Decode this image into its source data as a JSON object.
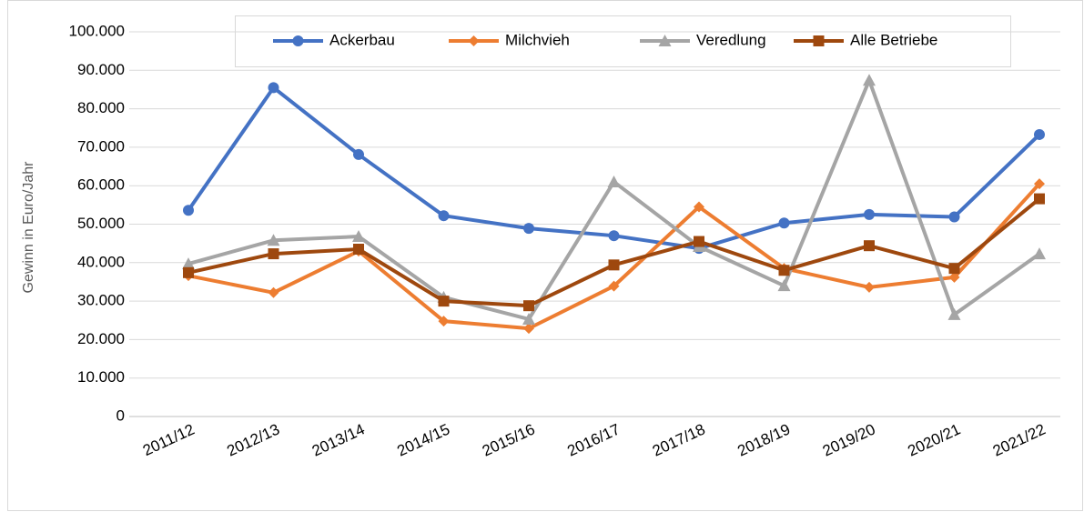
{
  "chart_data": {
    "type": "line",
    "y_label": "Gewinn in Euro/Jahr",
    "categories": [
      "2011/12",
      "2012/13",
      "2013/14",
      "2014/15",
      "2015/16",
      "2016/17",
      "2017/18",
      "2018/19",
      "2019/20",
      "2020/21",
      "2021/22"
    ],
    "series": [
      {
        "name": "Ackerbau",
        "color": "#4472c4",
        "marker": "circle",
        "values": [
          53600,
          85500,
          68100,
          52200,
          48900,
          47000,
          43700,
          50300,
          52500,
          51900,
          73300
        ]
      },
      {
        "name": "Milchvieh",
        "color": "#ed7d31",
        "marker": "diamond",
        "values": [
          36600,
          32200,
          43000,
          24800,
          22900,
          33900,
          54500,
          38500,
          33600,
          36200,
          60500
        ]
      },
      {
        "name": "Veredlung",
        "color": "#a5a5a5",
        "marker": "triangle",
        "values": [
          39700,
          45800,
          46800,
          31000,
          25300,
          61000,
          44200,
          34000,
          87400,
          26500,
          42300
        ]
      },
      {
        "name": "Alle Betriebe",
        "color": "#9e480e",
        "marker": "square",
        "values": [
          37400,
          42300,
          43500,
          30000,
          28800,
          39400,
          45500,
          38000,
          44400,
          38500,
          56600
        ]
      }
    ],
    "ylim": [
      0,
      100000
    ],
    "yticks": [
      0,
      {
        "value": 10000,
        "label": "10.000"
      },
      {
        "value": 20000,
        "label": "20.000"
      },
      {
        "value": 30000,
        "label": "30.000"
      },
      {
        "value": 40000,
        "label": "40.000"
      },
      {
        "value": 50000,
        "label": "50.000"
      },
      {
        "value": 60000,
        "label": "60.000"
      },
      {
        "value": 70000,
        "label": "70.000"
      },
      {
        "value": 80000,
        "label": "80.000"
      },
      {
        "value": 90000,
        "label": "90.000"
      },
      {
        "value": 100000,
        "label": "100.000"
      }
    ],
    "grid": true,
    "legend": "top"
  }
}
